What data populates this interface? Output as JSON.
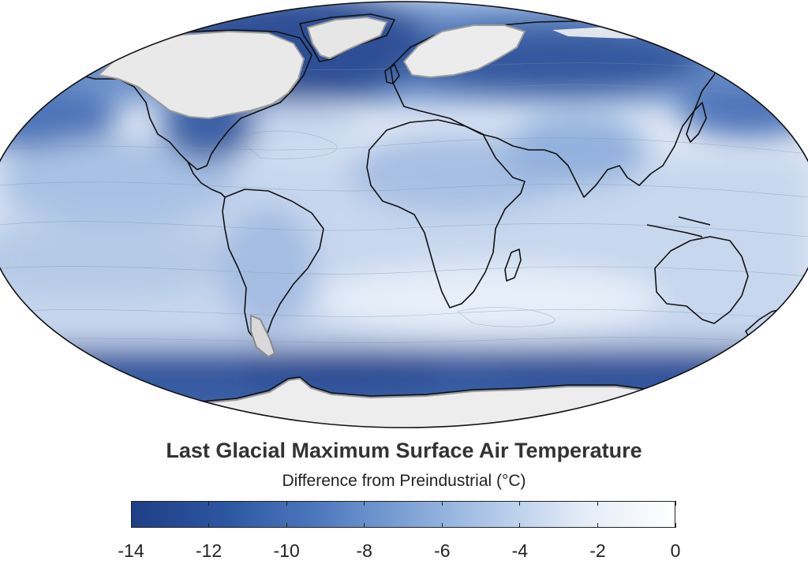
{
  "title": "Last Glacial Maximum Surface Air Temperature",
  "subtitle": "Difference from Preindustrial (°C)",
  "colormap": {
    "min": -14,
    "max": 0,
    "stops": [
      "#1f3f86",
      "#2c55a0",
      "#4b76bc",
      "#7ba1d4",
      "#b1c9e9",
      "#e4ecf8",
      "#ffffff"
    ],
    "ticks": [
      -14,
      -12,
      -10,
      -8,
      -6,
      -4,
      -2,
      0
    ],
    "tick_labels": [
      "-14",
      "-12",
      "-10",
      "-8",
      "-6",
      "-4",
      "-2",
      "0"
    ]
  },
  "colors": {
    "ice": "#e9e9e9",
    "ice_shadow": "#9c9c9c",
    "land_outline": "#111111",
    "ocean_base": "#dfe8f5"
  }
}
